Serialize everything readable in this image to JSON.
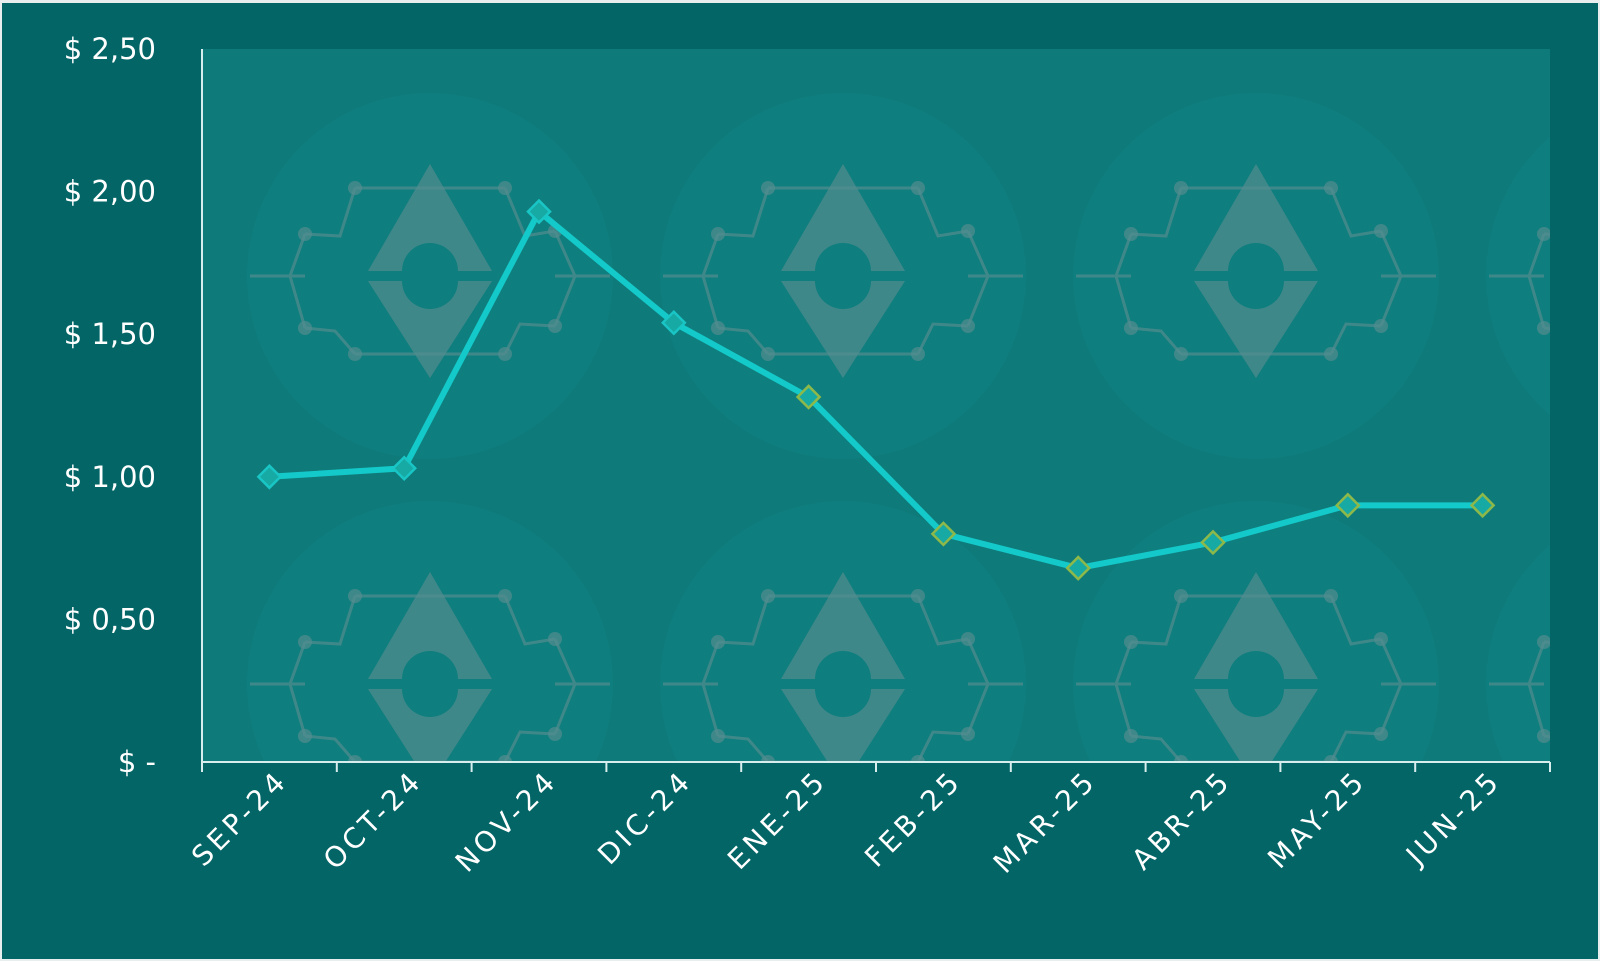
{
  "colors": {
    "frame": "#036566",
    "plot_background": "#0f7a7a",
    "line": "#14c9c9",
    "marker_fill": "#17a9a3",
    "marker_stroke_early": "#19c5c5",
    "marker_stroke_late": "#8db84a",
    "axis": "#d8eeee",
    "watermark": "#5d8f92"
  },
  "background_icon": "ethereum-circuit-icon",
  "chart_data": {
    "type": "line",
    "title": "",
    "xlabel": "",
    "ylabel": "",
    "categories": [
      "SEP-24",
      "OCT-24",
      "NOV-24",
      "DIC-24",
      "ENE-25",
      "FEB-25",
      "MAR-25",
      "ABR-25",
      "MAY-25",
      "JUN-25"
    ],
    "series": [
      {
        "values": [
          1.0,
          1.03,
          1.93,
          1.54,
          1.28,
          0.8,
          0.68,
          0.77,
          0.9,
          0.9
        ]
      }
    ],
    "ylim": [
      0,
      2.5
    ],
    "yticks": [
      0,
      0.5,
      1.0,
      1.5,
      2.0,
      2.5
    ],
    "ytick_labels": [
      "$ -",
      "$ 0,50",
      "$ 1,00",
      "$ 1,50",
      "$ 2,00",
      "$ 2,50"
    ],
    "grid": false,
    "legend": "none",
    "marker": "diamond"
  }
}
